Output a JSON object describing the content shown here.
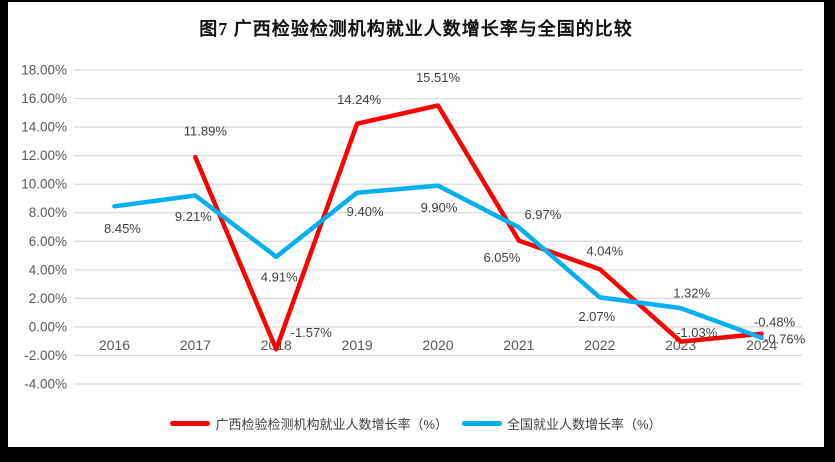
{
  "chart_data": {
    "type": "line",
    "title": "图7 广西检验检测机构就业人数增长率与全国的比较",
    "categories": [
      "2016",
      "2017",
      "2018",
      "2019",
      "2020",
      "2021",
      "2022",
      "2023",
      "2024"
    ],
    "series": [
      {
        "name": "广西检验检测机构就业人数增长率（%）",
        "color": "#FF0000",
        "values": [
          null,
          11.89,
          -1.57,
          14.24,
          15.51,
          6.05,
          4.04,
          -1.03,
          -0.48
        ],
        "point_labels": [
          null,
          "11.89%",
          "-1.57%",
          "14.24%",
          "15.51%",
          "6.05%",
          "4.04%",
          "-1.03%",
          "-0.48%"
        ],
        "label_offsets": [
          [
            0,
            0
          ],
          [
            10,
            -26
          ],
          [
            35,
            -17
          ],
          [
            2,
            -24
          ],
          [
            0,
            -28
          ],
          [
            -17,
            17
          ],
          [
            5,
            -18
          ],
          [
            16,
            -9
          ],
          [
            13,
            -12
          ]
        ]
      },
      {
        "name": "全国就业人数增长率（%）",
        "color": "#00B0F0",
        "values": [
          8.45,
          9.21,
          4.91,
          9.4,
          9.9,
          6.97,
          2.07,
          1.32,
          -0.76
        ],
        "point_labels": [
          "8.45%",
          "9.21%",
          "4.91%",
          "9.40%",
          "9.90%",
          "6.97%",
          "2.07%",
          "1.32%",
          "-0.76%"
        ],
        "label_offsets": [
          [
            8,
            22
          ],
          [
            -2,
            21
          ],
          [
            3,
            20
          ],
          [
            8,
            19
          ],
          [
            1,
            22
          ],
          [
            24,
            -13
          ],
          [
            -3,
            19
          ],
          [
            11,
            -15
          ],
          [
            23,
            1
          ]
        ]
      }
    ],
    "y_axis": {
      "min": -4,
      "max": 18,
      "step": 2,
      "tick_labels": [
        "18.00%",
        "16.00%",
        "14.00%",
        "12.00%",
        "10.00%",
        "8.00%",
        "6.00%",
        "4.00%",
        "2.00%",
        "0.00%",
        "-2.00%",
        "-4.00%"
      ]
    },
    "grid": true,
    "legend_position": "bottom",
    "colors": {
      "gridline": "#D9D9D9",
      "axis_text": "#595959",
      "data_label_text": "#3f3f3f",
      "background": "#FFFFFF",
      "frame": "#000000"
    }
  }
}
